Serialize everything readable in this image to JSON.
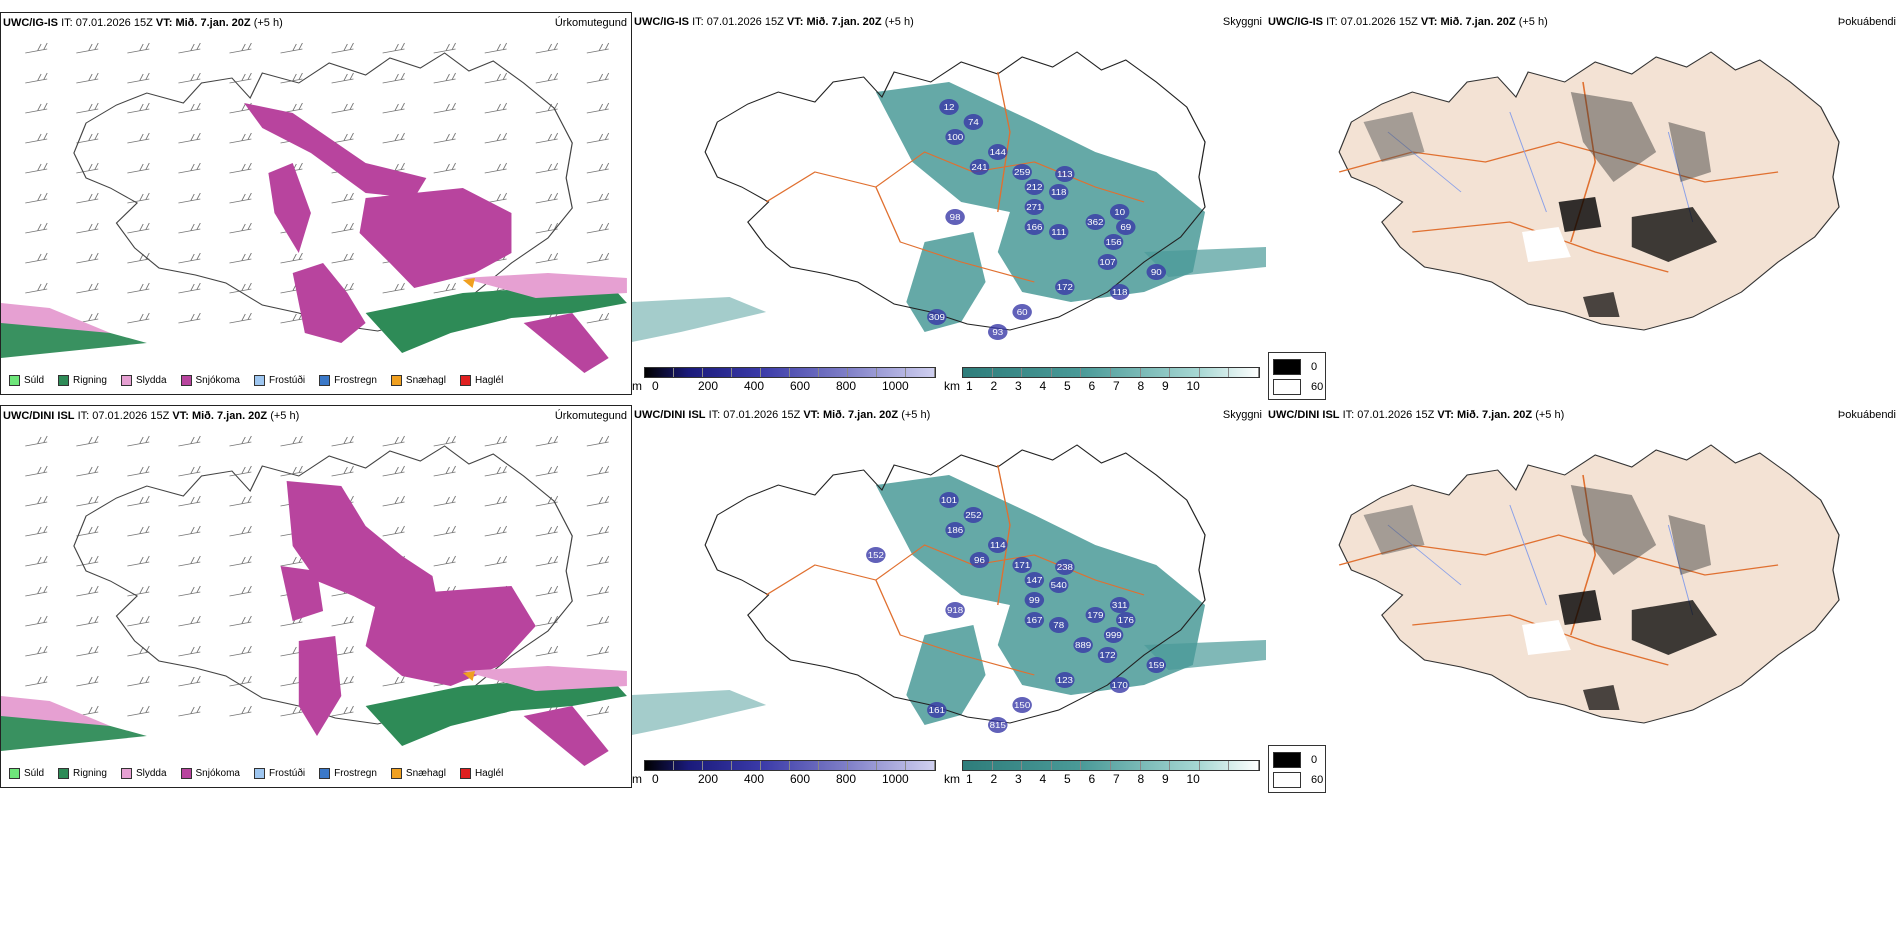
{
  "colors": {
    "precip_legend": [
      "#6ee67a",
      "#2e8b57",
      "#e6a0d2",
      "#b8449e",
      "#9ec6f0",
      "#3a78c8",
      "#f0a020",
      "#e02020"
    ],
    "snow": "#b8449e",
    "rain": "#2e8b57",
    "sleet": "#e6a0d2",
    "cloud_teal": "#4a9a98",
    "low_cloud_blue": "#3a3aa8",
    "land_fog": "#f3e2d4",
    "roads": "#e07030"
  },
  "rows": [
    {
      "model": "UWC/IG-IS",
      "it_label": "IT:",
      "it_value": "07.01.2026 15Z",
      "vt_label": "VT:",
      "vt_value": "Mið. 7.jan. 20Z",
      "lead": "(+5 h)",
      "cloud_labels": [
        "12",
        "74",
        "100",
        "144",
        "241",
        "259",
        "113",
        "212",
        "118",
        "271",
        "98",
        "166",
        "111",
        "362",
        "10",
        "69",
        "156",
        "107",
        "172",
        "118",
        "309",
        "93",
        "60",
        "90"
      ]
    },
    {
      "model": "UWC/DINI ISL",
      "it_label": "IT:",
      "it_value": "07.01.2026 15Z",
      "vt_label": "VT:",
      "vt_value": "Mið. 7.jan. 20Z",
      "lead": "(+5 h)",
      "cloud_labels": [
        "101",
        "252",
        "186",
        "114",
        "96",
        "171",
        "238",
        "147",
        "540",
        "99",
        "918",
        "167",
        "78",
        "179",
        "311",
        "176",
        "999",
        "172",
        "123",
        "170",
        "161",
        "815",
        "150",
        "159",
        "152",
        "889"
      ]
    }
  ],
  "panel_titles": {
    "precip": "Úrkomutegund",
    "cloud": "Skyggni",
    "fog": "Þokuábendi"
  },
  "precip_legend": [
    "Súld",
    "Rigning",
    "Slydda",
    "Snjókoma",
    "Frostúði",
    "Frostregn",
    "Snæhagl",
    "Haglél"
  ],
  "colorbar_m": {
    "unit": "m",
    "ticks": [
      "0",
      "200",
      "400",
      "600",
      "800",
      "1000"
    ]
  },
  "colorbar_km": {
    "unit": "km",
    "ticks": [
      "1",
      "2",
      "3",
      "4",
      "5",
      "6",
      "7",
      "8",
      "9",
      "10"
    ]
  },
  "fog_legend": [
    "0",
    "60"
  ]
}
